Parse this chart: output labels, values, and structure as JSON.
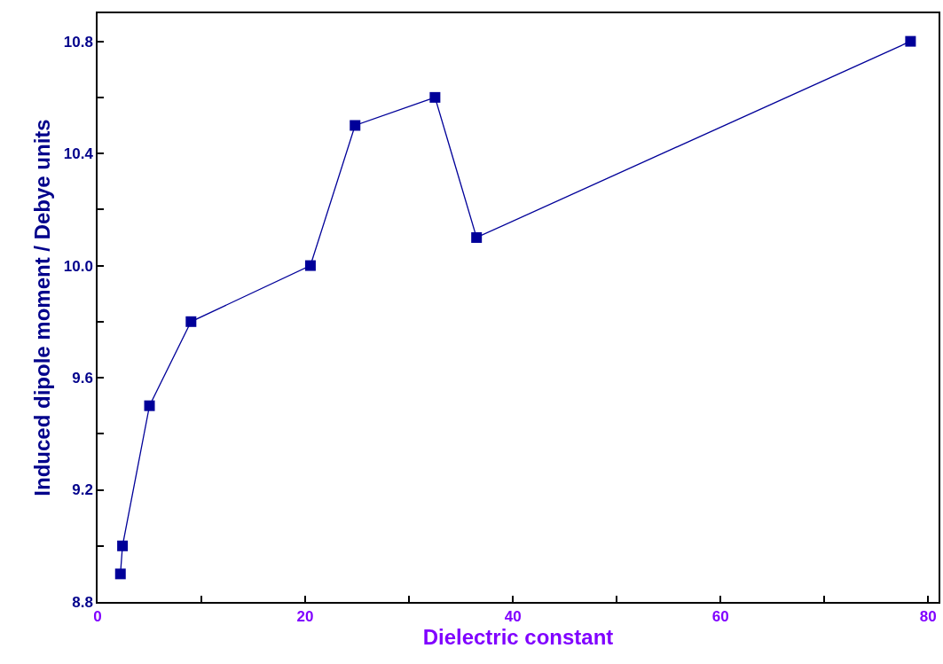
{
  "chart_data": {
    "type": "line",
    "xlabel": "Dielectric constant",
    "ylabel": "Induced dipole moment / Debye units",
    "x": [
      2.2,
      2.4,
      5.0,
      9.0,
      20.5,
      24.8,
      32.5,
      36.5,
      78.3
    ],
    "series": [
      {
        "color": "#000099",
        "values": [
          8.9,
          9.0,
          9.5,
          9.8,
          10.0,
          10.5,
          10.6,
          10.1,
          10.8
        ]
      }
    ],
    "xlim": [
      0,
      81
    ],
    "ylim": [
      8.8,
      10.9
    ],
    "xticks": [
      0,
      {
        "value": 10,
        "label": null
      },
      20,
      {
        "value": 30,
        "label": null
      },
      40,
      {
        "value": 50,
        "label": null
      },
      60,
      {
        "value": 70,
        "label": null
      },
      80
    ],
    "yticks": [
      8.8,
      {
        "value": 9.0,
        "label": null
      },
      9.2,
      {
        "value": 9.4,
        "label": null
      },
      9.6,
      {
        "value": 9.8,
        "label": null
      },
      {
        "value": 10.0,
        "label": "10.0"
      },
      {
        "value": 10.2,
        "label": null
      },
      10.4,
      {
        "value": 10.6,
        "label": null
      },
      10.8
    ],
    "grid": false,
    "marker": "square",
    "line_style": "solid"
  }
}
